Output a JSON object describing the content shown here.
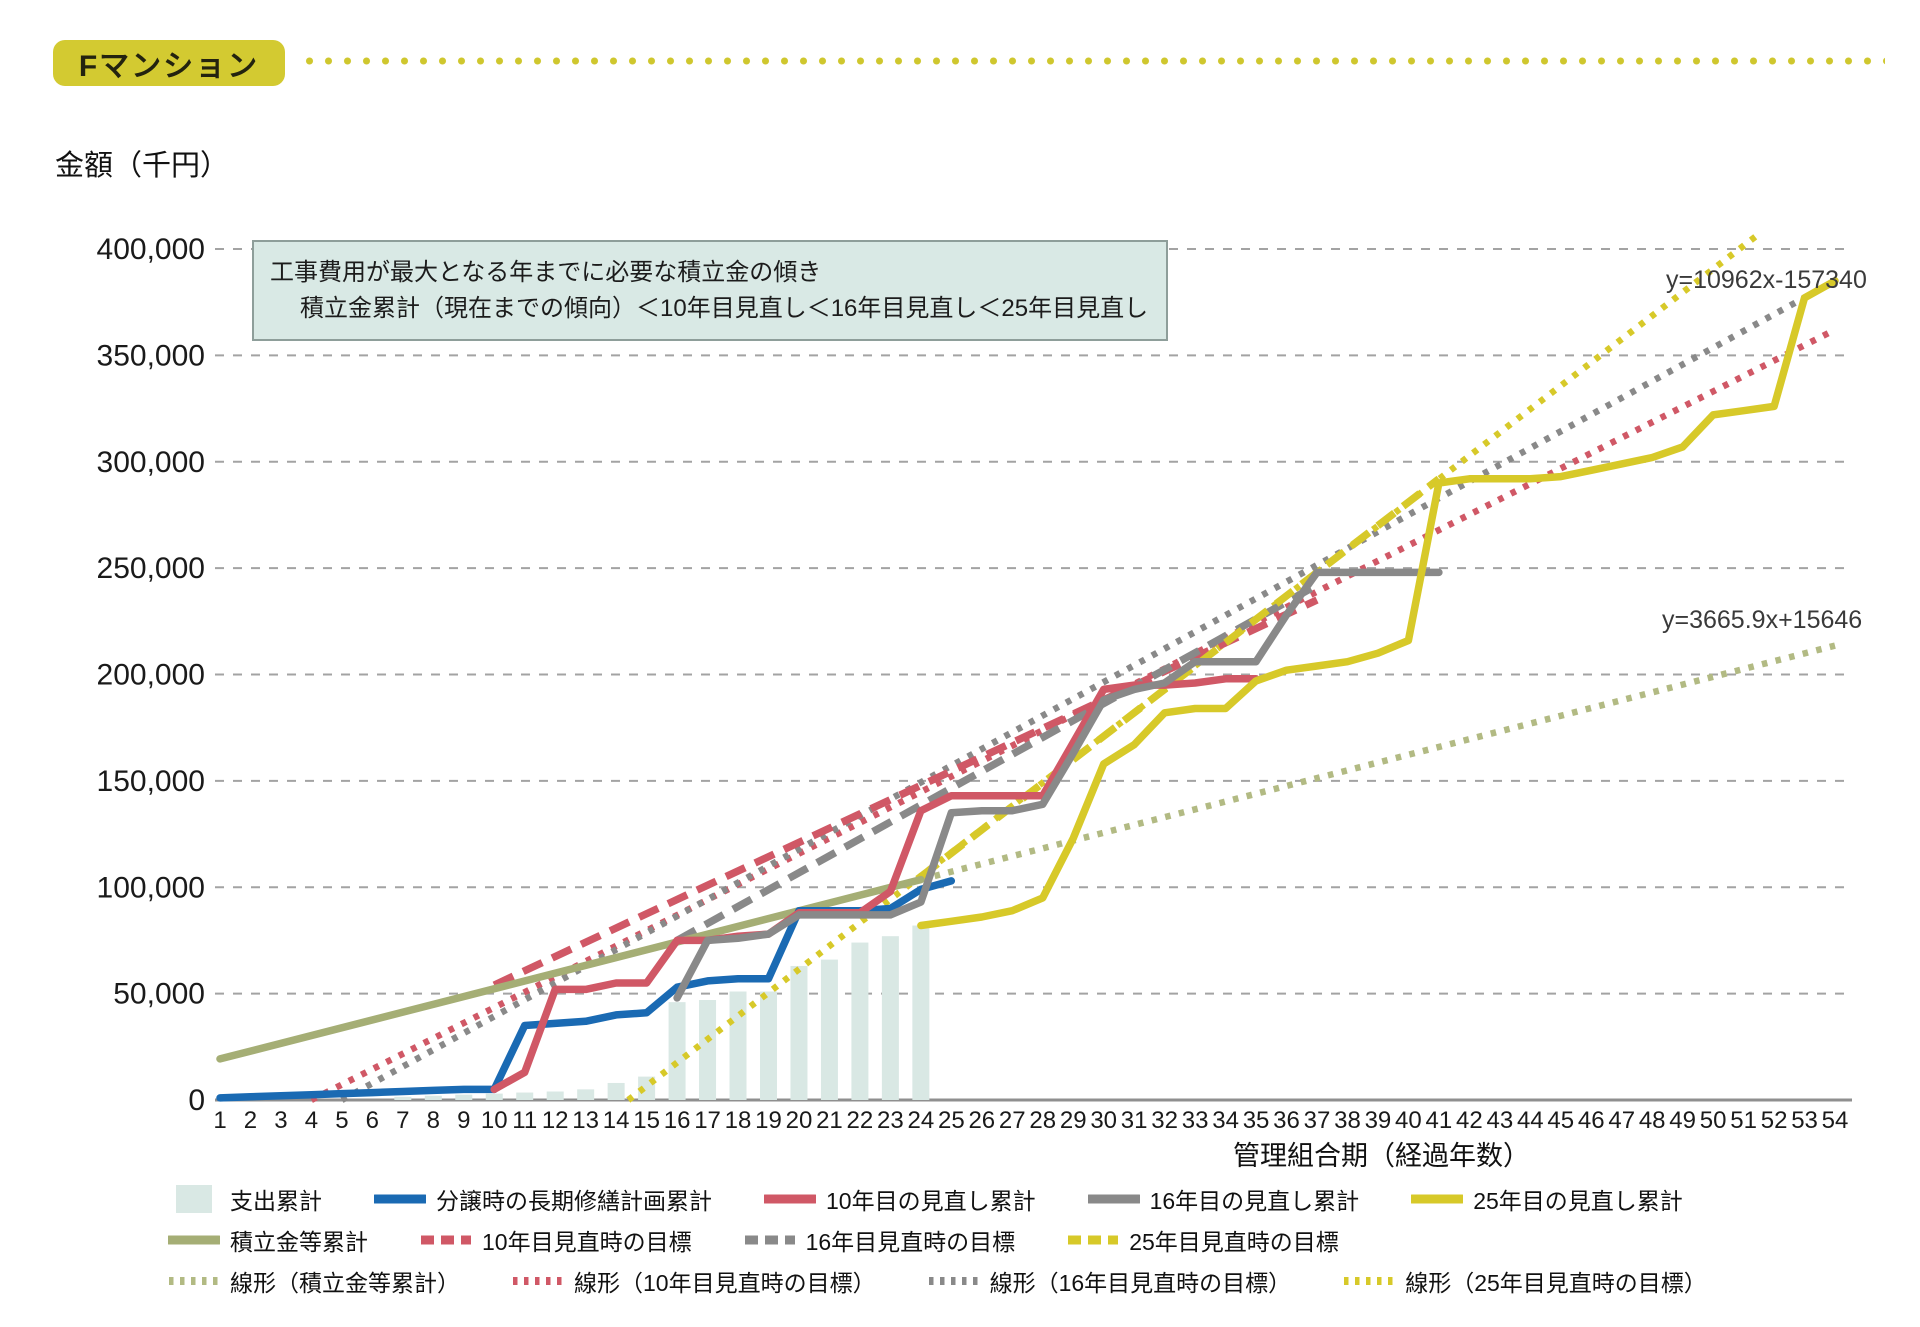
{
  "title_badge": "Fマンション",
  "colors": {
    "badge_bg": "#d3ca31",
    "leader_dot": "#cfc72e",
    "annotation_bg": "#d9e9e5",
    "annotation_border": "#8e9e9a",
    "grid": "#a3a3a3",
    "axis_line": "#8f8f8f",
    "bar": "#d9e8e4",
    "blue": "#1a6ab3",
    "red": "#d05866",
    "gray": "#898989",
    "yellow": "#d7c929",
    "olive": "#a5ae75",
    "olive_light": "#b2ba83"
  },
  "y_axis": {
    "label": "金額（千円）",
    "ticks": [
      "0",
      "50,000",
      "100,000",
      "150,000",
      "200,000",
      "250,000",
      "300,000",
      "350,000",
      "400,000"
    ],
    "min": 0,
    "max": 400000,
    "step": 50000
  },
  "x_axis": {
    "label": "管理組合期（経過年数）",
    "start": 1,
    "end": 54
  },
  "annotation": {
    "line1": "工事費用が最大となる年までに必要な積立金の傾き",
    "line2": "積立金累計（現在までの傾向）＜10年目見直し＜16年目見直し＜25年目見直し"
  },
  "chart_data": {
    "type": "combo bar+line",
    "unit": "千円 (thousand yen)",
    "xlabel": "管理組合期（経過年数）",
    "ylabel": "金額（千円）",
    "xlim": [
      1,
      54
    ],
    "ylim": [
      0,
      400000
    ],
    "grid": "horizontal dashed every 50,000",
    "legend_position": "bottom, 3 rows",
    "equations": [
      {
        "text": "y=10962x-157340",
        "refers_to": "線形（25年目見直時の目標）"
      },
      {
        "text": "y=3665.9x+15646",
        "refers_to": "線形（積立金等累計）"
      }
    ],
    "draw_order": [
      0,
      9,
      10,
      11,
      12,
      6,
      7,
      8,
      5,
      1,
      2,
      3,
      4
    ],
    "series": [
      {
        "key": "bars",
        "label": "支出累計",
        "kind": "bar",
        "dash": "solid",
        "color": "#d9e8e4",
        "legend_row": 1,
        "points": [
          [
            7,
            1500
          ],
          [
            8,
            2000
          ],
          [
            9,
            2500
          ],
          [
            10,
            3000
          ],
          [
            11,
            3500
          ],
          [
            12,
            4000
          ],
          [
            13,
            5000
          ],
          [
            14,
            8000
          ],
          [
            15,
            11000
          ],
          [
            16,
            46000
          ],
          [
            17,
            47000
          ],
          [
            18,
            51000
          ],
          [
            19,
            51000
          ],
          [
            20,
            63000
          ],
          [
            21,
            66000
          ],
          [
            22,
            74000
          ],
          [
            23,
            77000
          ],
          [
            24,
            82000
          ]
        ]
      },
      {
        "key": "blue-solid",
        "label": "分譲時の長期修繕計画累計",
        "kind": "line",
        "dash": "solid",
        "color": "#1a6ab3",
        "legend_row": 1,
        "points": [
          [
            1,
            1000
          ],
          [
            2,
            1500
          ],
          [
            3,
            2000
          ],
          [
            4,
            2500
          ],
          [
            5,
            3000
          ],
          [
            6,
            3500
          ],
          [
            7,
            4000
          ],
          [
            8,
            4500
          ],
          [
            9,
            5000
          ],
          [
            10,
            5000
          ],
          [
            11,
            35000
          ],
          [
            12,
            36000
          ],
          [
            13,
            37000
          ],
          [
            14,
            40000
          ],
          [
            15,
            41000
          ],
          [
            16,
            53000
          ],
          [
            17,
            56000
          ],
          [
            18,
            57000
          ],
          [
            19,
            57000
          ],
          [
            20,
            89000
          ],
          [
            21,
            89000
          ],
          [
            22,
            89000
          ],
          [
            23,
            90000
          ],
          [
            24,
            99000
          ],
          [
            25,
            103000
          ]
        ]
      },
      {
        "key": "red-solid",
        "label": "10年目の見直し累計",
        "kind": "line",
        "dash": "solid",
        "color": "#d05866",
        "legend_row": 1,
        "points": [
          [
            10,
            5000
          ],
          [
            11,
            13000
          ],
          [
            12,
            52000
          ],
          [
            13,
            52000
          ],
          [
            14,
            55000
          ],
          [
            15,
            55000
          ],
          [
            16,
            75000
          ],
          [
            17,
            75000
          ],
          [
            18,
            77000
          ],
          [
            19,
            78000
          ],
          [
            20,
            88000
          ],
          [
            21,
            88000
          ],
          [
            22,
            88000
          ],
          [
            23,
            98000
          ],
          [
            24,
            136000
          ],
          [
            25,
            143000
          ],
          [
            26,
            143000
          ],
          [
            27,
            143000
          ],
          [
            28,
            143000
          ],
          [
            29,
            168000
          ],
          [
            30,
            193000
          ],
          [
            31,
            195000
          ],
          [
            32,
            195000
          ],
          [
            33,
            196000
          ],
          [
            34,
            198000
          ],
          [
            35,
            198000
          ]
        ]
      },
      {
        "key": "gray-solid",
        "label": "16年目の見直し累計",
        "kind": "line",
        "dash": "solid",
        "color": "#898989",
        "legend_row": 1,
        "points": [
          [
            16,
            48000
          ],
          [
            17,
            75000
          ],
          [
            18,
            76000
          ],
          [
            19,
            78000
          ],
          [
            20,
            87000
          ],
          [
            21,
            87000
          ],
          [
            22,
            87000
          ],
          [
            23,
            87000
          ],
          [
            24,
            93000
          ],
          [
            25,
            135000
          ],
          [
            26,
            136000
          ],
          [
            27,
            136000
          ],
          [
            28,
            139000
          ],
          [
            29,
            163000
          ],
          [
            30,
            188000
          ],
          [
            31,
            193000
          ],
          [
            32,
            196000
          ],
          [
            33,
            206000
          ],
          [
            34,
            206000
          ],
          [
            35,
            206000
          ],
          [
            36,
            228000
          ],
          [
            37,
            248000
          ],
          [
            38,
            248000
          ],
          [
            39,
            248000
          ],
          [
            40,
            248000
          ],
          [
            41,
            248000
          ]
        ]
      },
      {
        "key": "yellow-solid",
        "label": "25年目の見直し累計",
        "kind": "line",
        "dash": "solid",
        "color": "#d7c929",
        "legend_row": 1,
        "points": [
          [
            24,
            82000
          ],
          [
            25,
            84000
          ],
          [
            26,
            86000
          ],
          [
            27,
            89000
          ],
          [
            28,
            95000
          ],
          [
            29,
            123000
          ],
          [
            30,
            158000
          ],
          [
            31,
            167000
          ],
          [
            32,
            182000
          ],
          [
            33,
            184000
          ],
          [
            34,
            184000
          ],
          [
            35,
            197000
          ],
          [
            36,
            202000
          ],
          [
            37,
            204000
          ],
          [
            38,
            206000
          ],
          [
            39,
            210000
          ],
          [
            40,
            216000
          ],
          [
            41,
            290000
          ],
          [
            42,
            292000
          ],
          [
            43,
            292000
          ],
          [
            44,
            292000
          ],
          [
            45,
            293000
          ],
          [
            46,
            296000
          ],
          [
            47,
            299000
          ],
          [
            48,
            302000
          ],
          [
            49,
            307000
          ],
          [
            50,
            322000
          ],
          [
            51,
            324000
          ],
          [
            52,
            326000
          ],
          [
            53,
            377000
          ],
          [
            54,
            385000
          ]
        ]
      },
      {
        "key": "olive-solid",
        "label": "積立金等累計",
        "kind": "line",
        "dash": "solid",
        "color": "#a5ae75",
        "legend_row": 2,
        "points": [
          [
            1,
            19300
          ],
          [
            24,
            103600
          ]
        ]
      },
      {
        "key": "red-dashed",
        "label": "10年目見直時の目標",
        "kind": "line",
        "dash": "dashed",
        "color": "#d05866",
        "legend_row": 2,
        "points": [
          [
            10,
            54000
          ],
          [
            37,
            235000
          ]
        ]
      },
      {
        "key": "gray-dashed",
        "label": "16年目見直時の目標",
        "kind": "line",
        "dash": "dashed",
        "color": "#898989",
        "legend_row": 2,
        "points": [
          [
            16,
            75000
          ],
          [
            37,
            242000
          ]
        ]
      },
      {
        "key": "yellow-dashed",
        "label": "25年目見直時の目標",
        "kind": "line",
        "dash": "dashed",
        "color": "#d7c929",
        "legend_row": 2,
        "points": [
          [
            24,
            105000
          ],
          [
            41,
            292000
          ]
        ]
      },
      {
        "key": "olive-dotted",
        "label": "線形（積立金等累計）",
        "kind": "line",
        "dash": "dotted",
        "color": "#b2ba83",
        "legend_row": 3,
        "points": [
          [
            20,
            89000
          ],
          [
            54,
            213600
          ]
        ]
      },
      {
        "key": "red-dotted",
        "label": "線形（10年目見直時の目標）",
        "kind": "line",
        "dash": "dotted",
        "color": "#d05866",
        "legend_row": 3,
        "points": [
          [
            4,
            0
          ],
          [
            54,
            362000
          ]
        ]
      },
      {
        "key": "gray-dotted",
        "label": "線形（16年目見直時の目標）",
        "kind": "line",
        "dash": "dotted",
        "color": "#898989",
        "legend_row": 3,
        "points": [
          [
            5,
            0
          ],
          [
            54,
            385000
          ]
        ]
      },
      {
        "key": "yellow-dotted",
        "label": "線形（25年目見直時の目標）",
        "kind": "line",
        "dash": "dotted",
        "color": "#d7c929",
        "legend_row": 3,
        "points": [
          [
            14.4,
            0
          ],
          [
            51.5,
            407000
          ]
        ]
      }
    ]
  },
  "legend": {
    "rows": [
      [
        0,
        1,
        2,
        3,
        4
      ],
      [
        5,
        6,
        7,
        8
      ],
      [
        9,
        10,
        11,
        12
      ]
    ]
  },
  "equation_labels": {
    "eq1": "y=10962x-157340",
    "eq2": "y=3665.9x+15646"
  }
}
